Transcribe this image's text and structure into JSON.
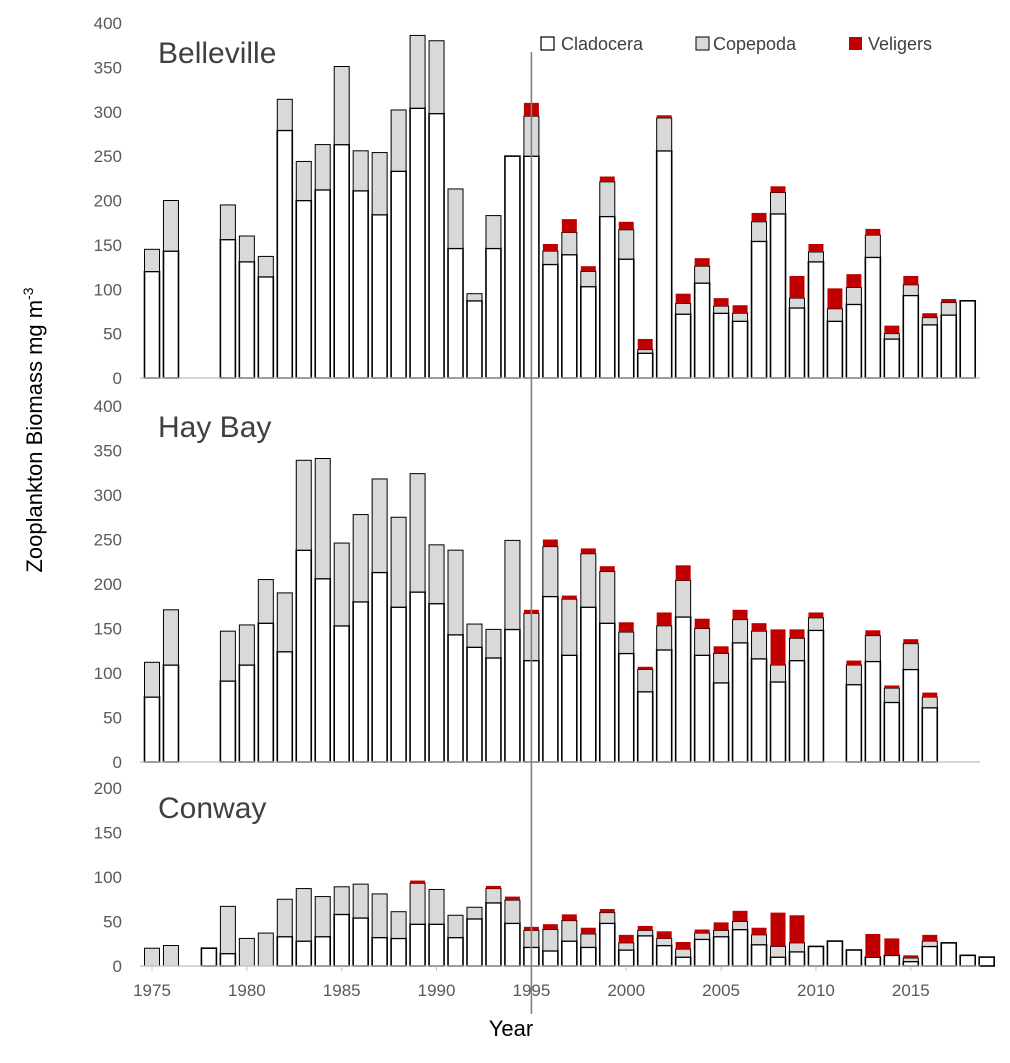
{
  "colors": {
    "cladocera": "#ffffff",
    "copepoda": "#d9d9d9",
    "veligers": "#c00000",
    "bar_stroke": "#000000",
    "axis": "#bfbfbf",
    "divider": "#808080"
  },
  "chart_data": {
    "type": "bar",
    "stacked": true,
    "xlabel": "Year",
    "ylabel": "Zooplankton Biomass mg m",
    "ylabel_sup": "-3",
    "x_ticks": [
      "1975",
      "1980",
      "1985",
      "1990",
      "1995",
      "2000",
      "2005",
      "2010",
      "2015"
    ],
    "divider_year": 1995,
    "legend": [
      {
        "key": "cladocera",
        "label": "Cladocera"
      },
      {
        "key": "copepoda",
        "label": "Copepoda"
      },
      {
        "key": "veligers",
        "label": "Veligers"
      }
    ],
    "legend_position": "top-right",
    "panels": [
      {
        "title": "Belleville",
        "ylim": [
          0,
          400
        ],
        "y_ticks": [
          "0",
          "50",
          "100",
          "150",
          "200",
          "250",
          "300",
          "350",
          "400"
        ],
        "years": [
          1975,
          1976,
          1979,
          1980,
          1981,
          1982,
          1983,
          1984,
          1985,
          1986,
          1987,
          1988,
          1989,
          1990,
          1991,
          1992,
          1993,
          1994,
          1995,
          1996,
          1997,
          1998,
          1999,
          2000,
          2001,
          2002,
          2003,
          2004,
          2005,
          2006,
          2007,
          2008,
          2009,
          2010,
          2011,
          2012,
          2013,
          2014,
          2015,
          2016,
          2017,
          2018,
          2019
        ],
        "cladocera": [
          120,
          143,
          156,
          131,
          114,
          279,
          200,
          212,
          263,
          211,
          184,
          233,
          304,
          298,
          146,
          87,
          146,
          250,
          250,
          128,
          139,
          103,
          182,
          134,
          28,
          256,
          72,
          107,
          73,
          64,
          154,
          185,
          79,
          131,
          64,
          83,
          136,
          44,
          93,
          60,
          71,
          87,
          0
        ],
        "copepoda": [
          25,
          57,
          39,
          29,
          23,
          35,
          44,
          51,
          88,
          45,
          70,
          69,
          82,
          82,
          67,
          8,
          37,
          0,
          45,
          15,
          25,
          17,
          39,
          33,
          4,
          37,
          12,
          19,
          8,
          9,
          22,
          24,
          11,
          11,
          14,
          19,
          25,
          6,
          12,
          8,
          14,
          0,
          0
        ],
        "veligers": [
          0,
          0,
          0,
          0,
          0,
          0,
          0,
          0,
          0,
          0,
          0,
          0,
          0,
          0,
          0,
          0,
          0,
          0,
          15,
          8,
          15,
          6,
          6,
          9,
          12,
          3,
          11,
          9,
          9,
          9,
          10,
          7,
          25,
          9,
          23,
          15,
          7,
          9,
          10,
          5,
          4,
          0,
          0
        ]
      },
      {
        "title": "Hay Bay",
        "ylim": [
          0,
          400
        ],
        "y_ticks": [
          "0",
          "50",
          "100",
          "150",
          "200",
          "250",
          "300",
          "350",
          "400"
        ],
        "years": [
          1975,
          1976,
          1979,
          1980,
          1981,
          1982,
          1983,
          1984,
          1985,
          1986,
          1987,
          1988,
          1989,
          1990,
          1991,
          1992,
          1993,
          1994,
          1995,
          1996,
          1997,
          1998,
          1999,
          2000,
          2001,
          2002,
          2003,
          2004,
          2005,
          2006,
          2007,
          2008,
          2009,
          2010,
          2012,
          2013,
          2014,
          2015,
          2016,
          2017,
          2018,
          2019
        ],
        "cladocera": [
          73,
          109,
          91,
          109,
          156,
          124,
          238,
          206,
          153,
          180,
          213,
          174,
          191,
          178,
          143,
          129,
          117,
          149,
          114,
          186,
          120,
          174,
          156,
          122,
          79,
          126,
          163,
          120,
          89,
          134,
          116,
          90,
          114,
          148,
          87,
          113,
          67,
          104,
          61,
          0,
          0,
          0
        ],
        "copepoda": [
          39,
          62,
          56,
          45,
          49,
          66,
          101,
          135,
          93,
          98,
          105,
          101,
          133,
          66,
          95,
          26,
          32,
          100,
          53,
          56,
          63,
          60,
          58,
          24,
          25,
          27,
          41,
          30,
          33,
          26,
          31,
          19,
          25,
          14,
          22,
          29,
          16,
          29,
          12,
          0,
          0,
          0
        ],
        "veligers": [
          0,
          0,
          0,
          0,
          0,
          0,
          0,
          0,
          0,
          0,
          0,
          0,
          0,
          0,
          0,
          0,
          0,
          0,
          4,
          8,
          4,
          6,
          6,
          11,
          3,
          15,
          17,
          11,
          8,
          11,
          9,
          40,
          10,
          6,
          5,
          6,
          3,
          5,
          5,
          0,
          0,
          0
        ]
      },
      {
        "title": "Conway",
        "ylim": [
          0,
          200
        ],
        "y_ticks": [
          "0",
          "50",
          "100",
          "150",
          "200"
        ],
        "years": [
          1975,
          1976,
          1978,
          1979,
          1980,
          1981,
          1982,
          1983,
          1984,
          1985,
          1986,
          1987,
          1988,
          1989,
          1990,
          1991,
          1992,
          1993,
          1994,
          1995,
          1996,
          1997,
          1998,
          1999,
          2000,
          2001,
          2002,
          2003,
          2004,
          2005,
          2006,
          2007,
          2008,
          2009,
          2010,
          2011,
          2012,
          2013,
          2014,
          2015,
          2016,
          2017,
          2018,
          2019
        ],
        "cladocera": [
          0,
          0,
          20,
          14,
          0,
          0,
          33,
          28,
          33,
          58,
          54,
          32,
          31,
          47,
          47,
          32,
          53,
          71,
          48,
          21,
          17,
          28,
          21,
          48,
          18,
          34,
          23,
          10,
          30,
          33,
          41,
          24,
          10,
          16,
          22,
          28,
          18,
          10,
          12,
          5,
          22,
          26,
          12,
          10
        ],
        "copepoda": [
          20,
          23,
          0,
          53,
          31,
          37,
          42,
          59,
          45,
          31,
          38,
          49,
          30,
          46,
          39,
          25,
          13,
          16,
          26,
          19,
          24,
          23,
          15,
          12,
          8,
          6,
          8,
          9,
          7,
          7,
          9,
          11,
          12,
          10,
          0,
          0,
          0,
          0,
          0,
          4,
          6,
          0,
          0,
          0
        ],
        "veligers": [
          0,
          0,
          0,
          0,
          0,
          0,
          0,
          0,
          0,
          0,
          0,
          0,
          0,
          3,
          0,
          0,
          0,
          3,
          4,
          4,
          6,
          7,
          7,
          4,
          9,
          5,
          8,
          8,
          4,
          9,
          12,
          8,
          38,
          31,
          0,
          0,
          0,
          26,
          19,
          3,
          7,
          0,
          0,
          0
        ]
      }
    ]
  }
}
